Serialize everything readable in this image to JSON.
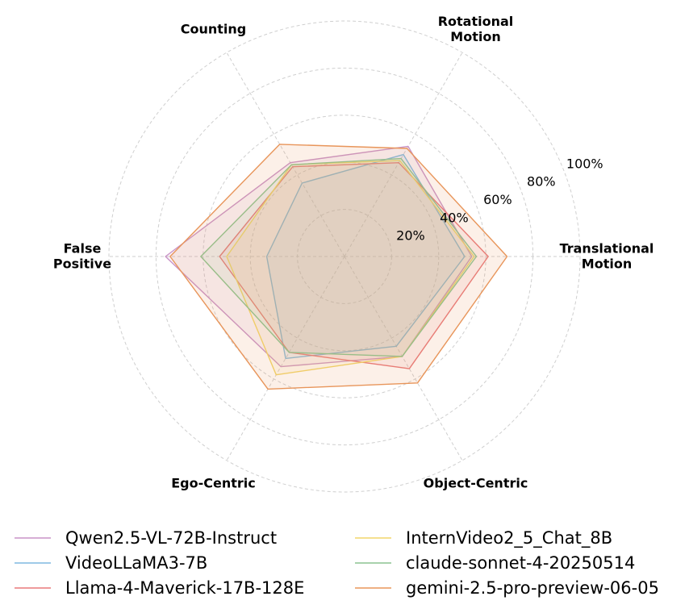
{
  "chart_data": {
    "type": "radar",
    "axes": [
      [
        "Translational",
        "Motion"
      ],
      [
        "Rotational",
        "Motion"
      ],
      [
        "Counting"
      ],
      [
        "False",
        "Positive"
      ],
      [
        "Ego-Centric"
      ],
      [
        "Object-Centric"
      ]
    ],
    "rlim": [
      0,
      100
    ],
    "ticks": [
      20,
      40,
      60,
      80,
      100
    ],
    "tick_labels": [
      "20%",
      "40%",
      "60%",
      "80%",
      "100%"
    ],
    "grid": true,
    "legend_position": "bottom",
    "series": [
      {
        "name": "Qwen2.5-VL-72B-Instruct",
        "color": "#c994c7",
        "values": [
          54,
          54,
          46,
          76,
          54,
          49
        ]
      },
      {
        "name": "VideoLLaMA3-7B",
        "color": "#7fb8e0",
        "values": [
          51,
          50,
          36,
          33,
          50,
          44
        ]
      },
      {
        "name": "Llama-4-Maverick-17B-128E",
        "color": "#e8787a",
        "values": [
          61,
          46,
          44,
          53,
          47,
          55
        ]
      },
      {
        "name": "InternVideo2_5_Chat_8B",
        "color": "#f2d66a",
        "values": [
          55,
          47,
          45,
          50,
          58,
          49
        ]
      },
      {
        "name": "claude-sonnet-4-20250514",
        "color": "#8cc490",
        "values": [
          56,
          48,
          45,
          61,
          47,
          49
        ]
      },
      {
        "name": "gemini-2.5-pro-preview-06-05",
        "color": "#e8955a",
        "values": [
          69,
          53,
          55,
          74,
          65,
          62
        ],
        "fill": true
      }
    ]
  }
}
